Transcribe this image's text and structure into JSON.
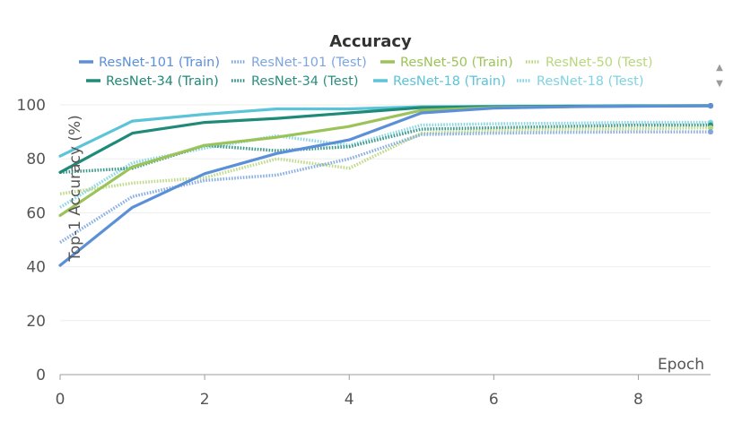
{
  "chart_data": {
    "type": "line",
    "title": "Accuracy",
    "xlabel": "Epoch",
    "ylabel": "Top-1 Accuracy (%)",
    "xlim": [
      0,
      9
    ],
    "ylim": [
      0,
      100
    ],
    "x_ticks": [
      0,
      2,
      4,
      6,
      8
    ],
    "y_ticks": [
      0,
      20,
      40,
      60,
      80,
      100
    ],
    "grid": true,
    "legend_position": "top",
    "x": [
      0,
      1,
      2,
      3,
      4,
      5,
      6,
      7,
      8,
      9
    ],
    "series": [
      {
        "name": "ResNet-101 (Train)",
        "style": "solid",
        "color": "#5b8fd8",
        "values": [
          40.5,
          62,
          74.5,
          82,
          87,
          97,
          98.8,
          99.3,
          99.5,
          99.6
        ]
      },
      {
        "name": "ResNet-101 (Test)",
        "style": "dotted",
        "color": "#7ea6e0",
        "values": [
          49,
          66,
          72,
          74,
          80,
          89,
          89.5,
          89.8,
          90,
          90
        ]
      },
      {
        "name": "ResNet-50 (Train)",
        "style": "solid",
        "color": "#9cc35a",
        "values": [
          59,
          77,
          85,
          88,
          92,
          98,
          99,
          99.3,
          99.5,
          99.6
        ]
      },
      {
        "name": "ResNet-50 (Test)",
        "style": "dotted",
        "color": "#b8d77e",
        "values": [
          67,
          71,
          73,
          80,
          76.5,
          89.5,
          90.5,
          91,
          91.2,
          91.5
        ]
      },
      {
        "name": "ResNet-34 (Train)",
        "style": "solid",
        "color": "#1f8a78",
        "values": [
          75,
          89.5,
          93.5,
          95,
          97,
          99,
          99.3,
          99.5,
          99.6,
          99.7
        ]
      },
      {
        "name": "ResNet-34 (Test)",
        "style": "dotted",
        "color": "#2a8f7e",
        "values": [
          75,
          76.5,
          85,
          83,
          84.5,
          91,
          91.5,
          92,
          92.5,
          92.5
        ]
      },
      {
        "name": "ResNet-18 (Train)",
        "style": "solid",
        "color": "#5bc4d8",
        "values": [
          81,
          94,
          96.5,
          98.5,
          98.5,
          99.3,
          99.5,
          99.6,
          99.7,
          99.7
        ]
      },
      {
        "name": "ResNet-18 (Test)",
        "style": "dotted",
        "color": "#7fd3e3",
        "values": [
          62,
          78.5,
          84,
          88.5,
          85,
          92.5,
          93,
          93.2,
          93.5,
          93.5
        ]
      }
    ]
  },
  "colors": {
    "title": "#333333",
    "axis": "#555555",
    "grid": "#eeeeee",
    "background": "#ffffff"
  }
}
